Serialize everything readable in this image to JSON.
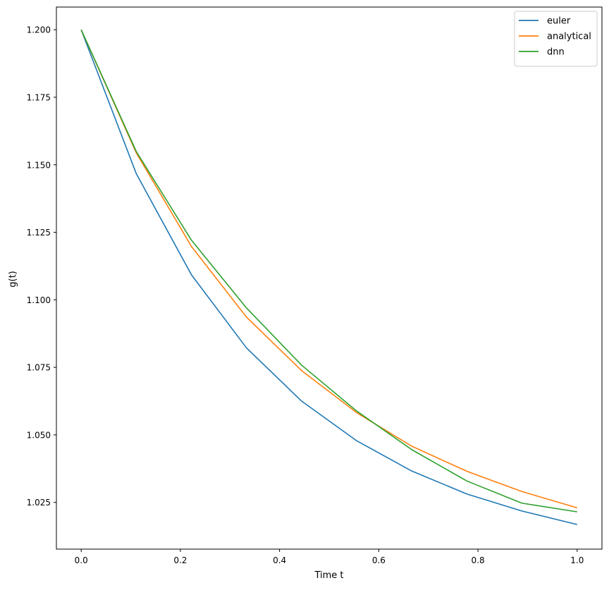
{
  "chart_data": {
    "type": "line",
    "title": "",
    "xlabel": "Time t",
    "ylabel": "g(t)",
    "xlim": [
      -0.05,
      1.05
    ],
    "ylim": [
      1.0077,
      1.2084
    ],
    "x_ticks": [
      0.0,
      0.2,
      0.4,
      0.6,
      0.8,
      1.0
    ],
    "x_tick_labels": [
      "0.0",
      "0.2",
      "0.4",
      "0.6",
      "0.8",
      "1.0"
    ],
    "y_ticks": [
      1.025,
      1.05,
      1.075,
      1.1,
      1.125,
      1.15,
      1.175,
      1.2
    ],
    "y_tick_labels": [
      "1.025",
      "1.050",
      "1.075",
      "1.100",
      "1.125",
      "1.150",
      "1.175",
      "1.200"
    ],
    "grid": false,
    "legend_position": "top-right",
    "x": [
      0.0,
      0.1111,
      0.2222,
      0.3333,
      0.4444,
      0.5556,
      0.6667,
      0.7778,
      0.8889,
      1.0
    ],
    "series": [
      {
        "name": "euler",
        "color": "#1f77b4",
        "values": [
          1.2,
          1.1467,
          1.1093,
          1.0822,
          1.0625,
          1.0478,
          1.0366,
          1.0281,
          1.0218,
          1.0168
        ]
      },
      {
        "name": "analytical",
        "color": "#ff7f0e",
        "values": [
          1.2,
          1.1544,
          1.1198,
          1.0936,
          1.0738,
          1.0582,
          1.0458,
          1.0365,
          1.029,
          1.023
        ]
      },
      {
        "name": "dnn",
        "color": "#2ca02c",
        "values": [
          1.2,
          1.1549,
          1.1221,
          1.097,
          1.0758,
          1.0588,
          1.0445,
          1.0329,
          1.0247,
          1.0215
        ]
      }
    ]
  }
}
